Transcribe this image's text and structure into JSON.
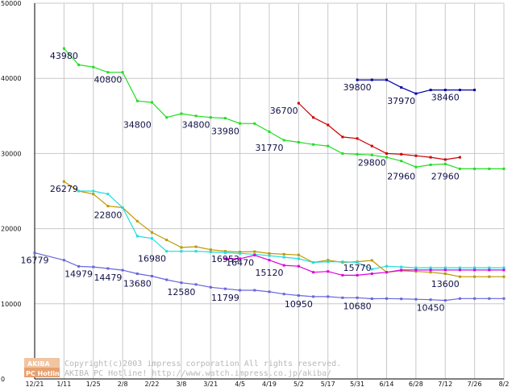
{
  "chart_data": {
    "type": "line",
    "title": "",
    "xlabel": "",
    "ylabel": "",
    "ylim": [
      0,
      50000
    ],
    "grid": true,
    "legend": "none",
    "y_ticks": [
      "0",
      "10000",
      "20000",
      "30000",
      "40000",
      "50000"
    ],
    "x_ticks": [
      "12/21",
      "1/11",
      "1/25",
      "2/8",
      "2/22",
      "3/8",
      "3/21",
      "4/5",
      "4/19",
      "5/2",
      "5/17",
      "5/31",
      "6/14",
      "6/28",
      "7/12",
      "7/26",
      "8/2"
    ],
    "x": [
      0,
      1,
      1.5,
      2,
      2.5,
      3,
      3.5,
      4,
      4.5,
      5,
      5.5,
      6,
      6.5,
      7,
      7.5,
      8,
      8.5,
      9,
      9.5,
      10,
      10.5,
      11,
      11.5,
      12,
      12.5,
      13,
      13.5,
      14,
      14.5,
      15,
      15.5,
      16
    ],
    "series": [
      {
        "name": "green",
        "color": "#22dd22",
        "values": [
          null,
          43980,
          41800,
          41500,
          40800,
          40800,
          37000,
          36800,
          34800,
          35300,
          35000,
          34800,
          34700,
          34000,
          33980,
          32900,
          31770,
          31500,
          31200,
          31000,
          30000,
          29900,
          29800,
          29500,
          29000,
          28200,
          28500,
          28600,
          27960,
          27960,
          27960,
          27960
        ]
      },
      {
        "name": "navy",
        "color": "#0000aa",
        "values": [
          null,
          null,
          null,
          null,
          null,
          null,
          null,
          null,
          null,
          null,
          null,
          null,
          null,
          null,
          null,
          null,
          null,
          null,
          null,
          null,
          null,
          39800,
          39800,
          39800,
          38800,
          37970,
          38460,
          38460,
          38460,
          38460,
          null,
          null
        ]
      },
      {
        "name": "red",
        "color": "#cc0000",
        "values": [
          null,
          null,
          null,
          null,
          null,
          null,
          null,
          null,
          null,
          null,
          null,
          null,
          null,
          null,
          null,
          null,
          null,
          36700,
          34800,
          33800,
          32200,
          32000,
          31000,
          30000,
          29900,
          29700,
          29500,
          29200,
          29500,
          null,
          null,
          null
        ]
      },
      {
        "name": "olive",
        "color": "#bb9900",
        "values": [
          null,
          26279,
          25000,
          24600,
          23000,
          22800,
          21000,
          19500,
          18500,
          17500,
          17600,
          17200,
          17000,
          16900,
          16953,
          16700,
          16600,
          16500,
          15500,
          15800,
          15500,
          15600,
          15770,
          14200,
          14400,
          14300,
          14200,
          14000,
          13600,
          13600,
          13600,
          13600
        ]
      },
      {
        "name": "cyan",
        "color": "#22dddd",
        "values": [
          null,
          null,
          25000,
          25000,
          24600,
          22800,
          19000,
          18700,
          16980,
          16980,
          17000,
          16900,
          16800,
          16700,
          16600,
          16400,
          16200,
          16000,
          15500,
          15600,
          15600,
          15500,
          14600,
          15000,
          14900,
          14800,
          14800,
          14800,
          14800,
          14800,
          14800,
          14800
        ]
      },
      {
        "name": "magenta",
        "color": "#dd00dd",
        "values": [
          null,
          null,
          null,
          null,
          null,
          null,
          null,
          null,
          null,
          null,
          null,
          null,
          16000,
          16000,
          16470,
          15800,
          15120,
          15000,
          14200,
          14300,
          13800,
          13800,
          14000,
          14200,
          14500,
          14500,
          14500,
          14500,
          14500,
          14500,
          14500,
          14500
        ]
      },
      {
        "name": "blue",
        "color": "#6666dd",
        "values": [
          16779,
          15800,
          14979,
          14900,
          14700,
          14479,
          14000,
          13680,
          13200,
          12800,
          12580,
          12200,
          12000,
          11799,
          11799,
          11600,
          11300,
          11100,
          10950,
          10950,
          10800,
          10800,
          10680,
          10700,
          10650,
          10600,
          10550,
          10450,
          10700,
          10700,
          10700,
          10700
        ]
      }
    ],
    "annotations": [
      {
        "text": "43980",
        "x": 1,
        "y": 43980
      },
      {
        "text": "40800",
        "x": 2.5,
        "y": 40800
      },
      {
        "text": "34800",
        "x": 3.5,
        "y": 34800
      },
      {
        "text": "34800",
        "x": 5.5,
        "y": 34800
      },
      {
        "text": "33980",
        "x": 6.5,
        "y": 33980
      },
      {
        "text": "31770",
        "x": 8,
        "y": 31770
      },
      {
        "text": "36700",
        "x": 8.5,
        "y": 36700
      },
      {
        "text": "29800",
        "x": 11.5,
        "y": 29800
      },
      {
        "text": "39800",
        "x": 11,
        "y": 39800
      },
      {
        "text": "37970",
        "x": 12.5,
        "y": 37970
      },
      {
        "text": "38460",
        "x": 14,
        "y": 38460
      },
      {
        "text": "27960",
        "x": 12.5,
        "y": 27960
      },
      {
        "text": "27960",
        "x": 14,
        "y": 27960
      },
      {
        "text": "26279",
        "x": 1,
        "y": 26279
      },
      {
        "text": "22800",
        "x": 2.5,
        "y": 22800
      },
      {
        "text": "16980",
        "x": 4,
        "y": 16980
      },
      {
        "text": "16953",
        "x": 6.5,
        "y": 16953
      },
      {
        "text": "16470",
        "x": 7,
        "y": 16470
      },
      {
        "text": "15120",
        "x": 8,
        "y": 15120
      },
      {
        "text": "15770",
        "x": 11,
        "y": 15770
      },
      {
        "text": "13600",
        "x": 14,
        "y": 13600
      },
      {
        "text": "16779",
        "x": 0,
        "y": 16779
      },
      {
        "text": "14979",
        "x": 1.5,
        "y": 14979
      },
      {
        "text": "14479",
        "x": 2.5,
        "y": 14479
      },
      {
        "text": "13680",
        "x": 3.5,
        "y": 13680
      },
      {
        "text": "12580",
        "x": 5,
        "y": 12580
      },
      {
        "text": "11799",
        "x": 6.5,
        "y": 11799
      },
      {
        "text": "10950",
        "x": 9,
        "y": 10950
      },
      {
        "text": "10680",
        "x": 11,
        "y": 10680
      },
      {
        "text": "10450",
        "x": 13.5,
        "y": 10450
      }
    ]
  },
  "watermark": {
    "badge_top": "AKIBA",
    "badge_bottom": "PC Hotline!",
    "line1": "Copyright(c)2003 impress corporation All rights reserved.",
    "line2": "AKIBA PC Hotline!  http://www.watch.impress.co.jp/akiba/"
  },
  "colors": {
    "grid": "#c8c8c8",
    "axis": "#000000",
    "label": "#101048"
  }
}
